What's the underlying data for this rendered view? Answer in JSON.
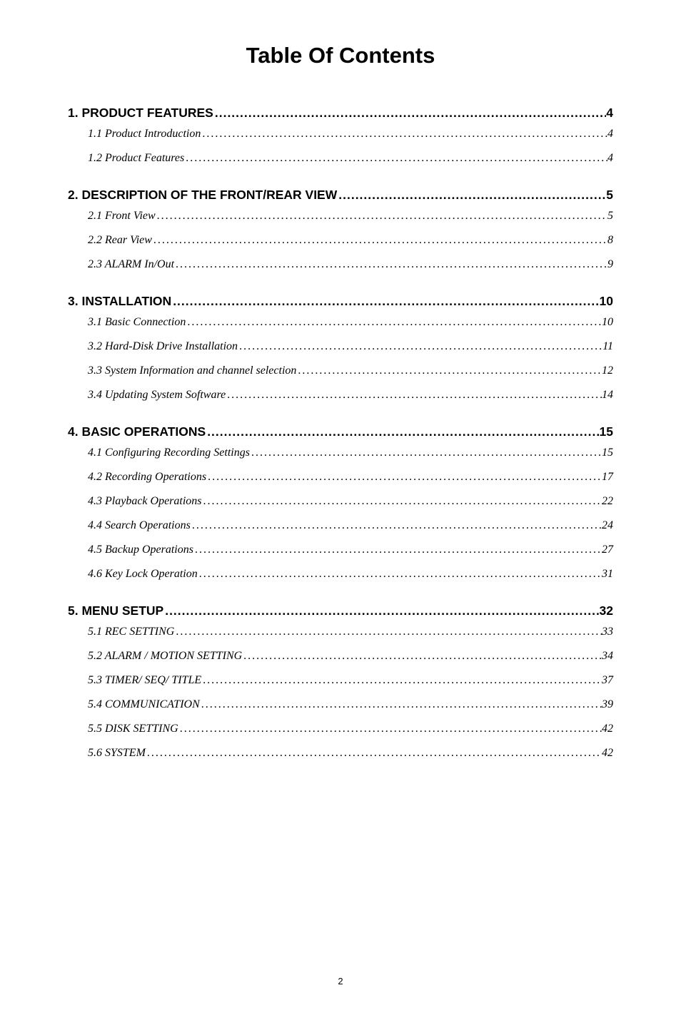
{
  "pageTitle": "Table Of Contents",
  "pageNumber": "2",
  "dots": ".............................................................................................................................................................................................................",
  "sections": [
    {
      "title": "1. PRODUCT FEATURES",
      "page": "4",
      "children": [
        {
          "title": "1.1 Product Introduction",
          "page": "4"
        },
        {
          "title": "1.2 Product Features",
          "page": "4"
        }
      ]
    },
    {
      "title": "2. DESCRIPTION OF THE FRONT/REAR VIEW",
      "page": "5",
      "children": [
        {
          "title": "2.1 Front View",
          "page": "5"
        },
        {
          "title": "2.2 Rear View",
          "page": "8"
        },
        {
          "title": "2.3 ALARM In/Out",
          "page": "9"
        }
      ]
    },
    {
      "title": "3. INSTALLATION",
      "page": "10",
      "children": [
        {
          "title": "3.1 Basic Connection",
          "page": "10"
        },
        {
          "title": "3.2 Hard-Disk Drive Installation",
          "page": "11"
        },
        {
          "title": "3.3 System Information and channel selection",
          "page": "12"
        },
        {
          "title": "3.4 Updating System Software",
          "page": "14"
        }
      ]
    },
    {
      "title": "4. BASIC OPERATIONS",
      "page": "15",
      "children": [
        {
          "title": "4.1 Configuring Recording Settings",
          "page": "15"
        },
        {
          "title": "4.2 Recording Operations",
          "page": "17"
        },
        {
          "title": "4.3 Playback Operations",
          "page": "22"
        },
        {
          "title": "4.4 Search Operations",
          "page": "24"
        },
        {
          "title": "4.5 Backup Operations",
          "page": "27"
        },
        {
          "title": "4.6 Key Lock Operation",
          "page": "31"
        }
      ]
    },
    {
      "title": "5. MENU SETUP",
      "page": "32",
      "children": [
        {
          "title": "5.1 REC SETTING",
          "page": "33"
        },
        {
          "title": "5.2 ALARM / MOTION SETTING",
          "page": "34"
        },
        {
          "title": "5.3 TIMER/ SEQ/ TITLE",
          "page": "37"
        },
        {
          "title": "5.4 COMMUNICATION",
          "page": "39"
        },
        {
          "title": "5.5 DISK SETTING",
          "page": "42"
        },
        {
          "title": "5.6 SYSTEM",
          "page": "42"
        }
      ]
    }
  ]
}
